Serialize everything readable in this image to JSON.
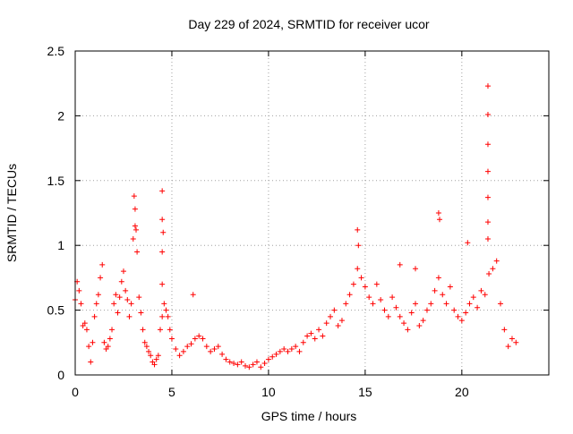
{
  "chart_data": {
    "type": "scatter",
    "title": "Day 229 of 2024, SRMTID for receiver ucor",
    "xlabel": "GPS time / hours",
    "ylabel": "SRMTID / TECUs",
    "xlim": [
      0,
      24.5
    ],
    "ylim": [
      0,
      2.5
    ],
    "x_ticks": [
      0,
      5,
      10,
      15,
      20
    ],
    "x_tick_labels": [
      "0",
      "5",
      "10",
      "15",
      "20"
    ],
    "y_ticks": [
      0,
      0.5,
      1,
      1.5,
      2,
      2.5
    ],
    "y_tick_labels": [
      "0",
      "0.5",
      "1",
      "1.5",
      "2",
      "2.5"
    ],
    "grid": true,
    "marker": "+",
    "series": [
      {
        "name": "SRMTID",
        "color": "#ff0000",
        "x": [
          0.0,
          0.1,
          0.2,
          0.3,
          0.4,
          0.5,
          0.6,
          0.7,
          0.8,
          0.9,
          1.0,
          1.1,
          1.2,
          1.3,
          1.4,
          1.5,
          1.6,
          1.7,
          1.8,
          1.9,
          2.0,
          2.1,
          2.2,
          2.3,
          2.4,
          2.5,
          2.6,
          2.7,
          2.8,
          2.9,
          3.0,
          3.1,
          3.2,
          3.3,
          3.4,
          3.5,
          3.6,
          3.7,
          3.8,
          3.9,
          4.0,
          4.1,
          4.2,
          4.3,
          4.4,
          4.5,
          4.6,
          4.7,
          4.8,
          4.9,
          5.0,
          5.2,
          5.4,
          5.6,
          5.8,
          6.0,
          6.2,
          6.4,
          6.6,
          6.8,
          7.0,
          7.2,
          7.4,
          7.6,
          7.8,
          8.0,
          8.2,
          8.4,
          8.6,
          8.8,
          9.0,
          9.2,
          9.4,
          9.6,
          9.8,
          10.0,
          10.2,
          10.4,
          10.6,
          10.8,
          11.0,
          11.2,
          11.4,
          11.6,
          11.8,
          12.0,
          12.2,
          12.4,
          12.6,
          12.8,
          13.0,
          13.2,
          13.4,
          13.6,
          13.8,
          14.0,
          14.2,
          14.4,
          14.6,
          14.8,
          15.0,
          15.2,
          15.4,
          15.6,
          15.8,
          16.0,
          16.2,
          16.4,
          16.6,
          16.8,
          17.0,
          17.2,
          17.4,
          17.6,
          17.8,
          18.0,
          18.2,
          18.4,
          18.6,
          18.8,
          19.0,
          19.2,
          19.4,
          19.6,
          19.8,
          20.0,
          20.2,
          20.4,
          20.6,
          20.8,
          21.0,
          21.2,
          21.4,
          21.6,
          21.8,
          22.0,
          22.2,
          22.4,
          22.6,
          22.8,
          4.5,
          4.5,
          4.5,
          4.5,
          4.55,
          6.1,
          14.6,
          14.65,
          18.8,
          18.85,
          21.35,
          21.35,
          21.35,
          21.35,
          21.35,
          21.35,
          21.35,
          3.05,
          3.1,
          3.15,
          20.3,
          16.8,
          17.6
        ],
        "y": [
          0.58,
          0.72,
          0.65,
          0.55,
          0.38,
          0.4,
          0.35,
          0.22,
          0.1,
          0.25,
          0.45,
          0.55,
          0.62,
          0.75,
          0.85,
          0.25,
          0.2,
          0.22,
          0.28,
          0.35,
          0.55,
          0.62,
          0.48,
          0.6,
          0.72,
          0.8,
          0.65,
          0.58,
          0.45,
          0.55,
          1.05,
          1.15,
          0.95,
          0.6,
          0.48,
          0.35,
          0.25,
          0.22,
          0.18,
          0.15,
          0.1,
          0.08,
          0.12,
          0.15,
          0.35,
          0.45,
          0.55,
          0.5,
          0.45,
          0.35,
          0.28,
          0.2,
          0.15,
          0.18,
          0.22,
          0.24,
          0.28,
          0.3,
          0.28,
          0.22,
          0.18,
          0.2,
          0.22,
          0.16,
          0.12,
          0.1,
          0.09,
          0.08,
          0.1,
          0.07,
          0.06,
          0.08,
          0.1,
          0.06,
          0.09,
          0.12,
          0.14,
          0.16,
          0.18,
          0.2,
          0.18,
          0.2,
          0.22,
          0.18,
          0.25,
          0.3,
          0.32,
          0.28,
          0.35,
          0.3,
          0.4,
          0.45,
          0.5,
          0.38,
          0.42,
          0.55,
          0.62,
          0.7,
          0.82,
          0.75,
          0.68,
          0.6,
          0.55,
          0.7,
          0.58,
          0.5,
          0.45,
          0.6,
          0.52,
          0.45,
          0.4,
          0.35,
          0.48,
          0.55,
          0.38,
          0.42,
          0.5,
          0.55,
          0.65,
          0.75,
          0.62,
          0.55,
          0.68,
          0.5,
          0.45,
          0.42,
          0.48,
          0.55,
          0.6,
          0.52,
          0.65,
          0.62,
          0.78,
          0.82,
          0.88,
          0.55,
          0.35,
          0.22,
          0.28,
          0.25,
          1.42,
          1.2,
          0.95,
          0.7,
          1.1,
          0.62,
          1.12,
          1.0,
          1.25,
          1.2,
          2.23,
          2.01,
          1.78,
          1.57,
          1.37,
          1.18,
          1.05,
          1.38,
          1.28,
          1.12,
          1.02,
          0.85,
          0.82
        ]
      }
    ]
  }
}
